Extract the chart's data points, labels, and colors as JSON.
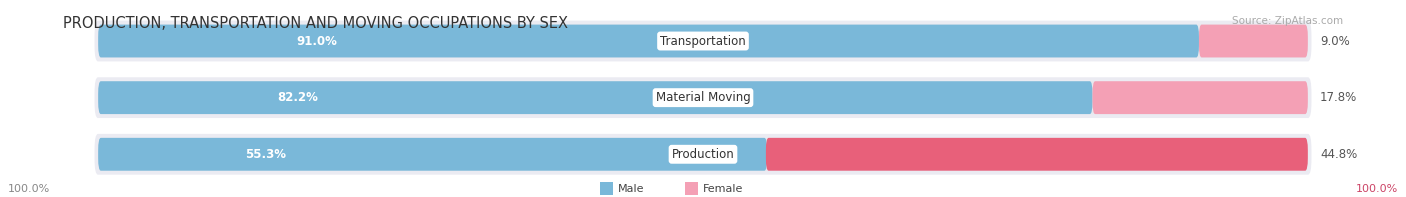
{
  "title": "PRODUCTION, TRANSPORTATION AND MOVING OCCUPATIONS BY SEX",
  "source": "Source: ZipAtlas.com",
  "categories": [
    "Transportation",
    "Material Moving",
    "Production"
  ],
  "male_values": [
    91.0,
    82.2,
    55.3
  ],
  "female_values": [
    9.0,
    17.8,
    44.8
  ],
  "male_color": "#7ab8d9",
  "female_color": "#f4a0b5",
  "production_female_color": "#e8607a",
  "bar_bg_color": "#e8e8ee",
  "row_bg_color": "#ebebf2",
  "male_label": "Male",
  "female_label": "Female",
  "axis_label_left": "100.0%",
  "axis_label_right": "100.0%",
  "title_fontsize": 10.5,
  "source_fontsize": 7.5,
  "bar_label_fontsize": 8.5,
  "category_fontsize": 8.5,
  "figsize": [
    14.06,
    1.97
  ],
  "dpi": 100
}
